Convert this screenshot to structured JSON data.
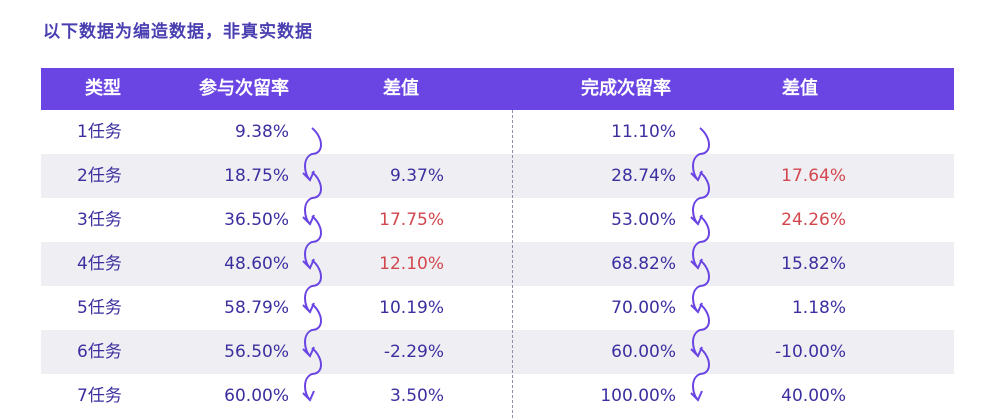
{
  "note": "以下数据为编造数据，非真实数据",
  "headers": {
    "type": "类型",
    "join_rate": "参与次留率",
    "join_diff": "差值",
    "complete_rate": "完成次留率",
    "complete_diff": "差值"
  },
  "rows": [
    {
      "type": "1任务",
      "join_rate": "9.38%",
      "join_diff": "",
      "join_diff_highlight": false,
      "complete_rate": "11.10%",
      "complete_diff": "",
      "complete_diff_highlight": false
    },
    {
      "type": "2任务",
      "join_rate": "18.75%",
      "join_diff": "9.37%",
      "join_diff_highlight": false,
      "complete_rate": "28.74%",
      "complete_diff": "17.64%",
      "complete_diff_highlight": true
    },
    {
      "type": "3任务",
      "join_rate": "36.50%",
      "join_diff": "17.75%",
      "join_diff_highlight": true,
      "complete_rate": "53.00%",
      "complete_diff": "24.26%",
      "complete_diff_highlight": true
    },
    {
      "type": "4任务",
      "join_rate": "48.60%",
      "join_diff": "12.10%",
      "join_diff_highlight": true,
      "complete_rate": "68.82%",
      "complete_diff": "15.82%",
      "complete_diff_highlight": false
    },
    {
      "type": "5任务",
      "join_rate": "58.79%",
      "join_diff": "10.19%",
      "join_diff_highlight": false,
      "complete_rate": "70.00%",
      "complete_diff": "1.18%",
      "complete_diff_highlight": false
    },
    {
      "type": "6任务",
      "join_rate": "56.50%",
      "join_diff": "-2.29%",
      "join_diff_highlight": false,
      "complete_rate": "60.00%",
      "complete_diff": "-10.00%",
      "complete_diff_highlight": false
    },
    {
      "type": "7任务",
      "join_rate": "60.00%",
      "join_diff": "3.50%",
      "join_diff_highlight": false,
      "complete_rate": "100.00%",
      "complete_diff": "40.00%",
      "complete_diff_highlight": false
    }
  ],
  "colors": {
    "header_bg": "#6a45e3",
    "text": "#3b2fa0",
    "highlight": "#d2474e",
    "row_alt": "#efeff3",
    "arrow": "#6a45e3"
  }
}
